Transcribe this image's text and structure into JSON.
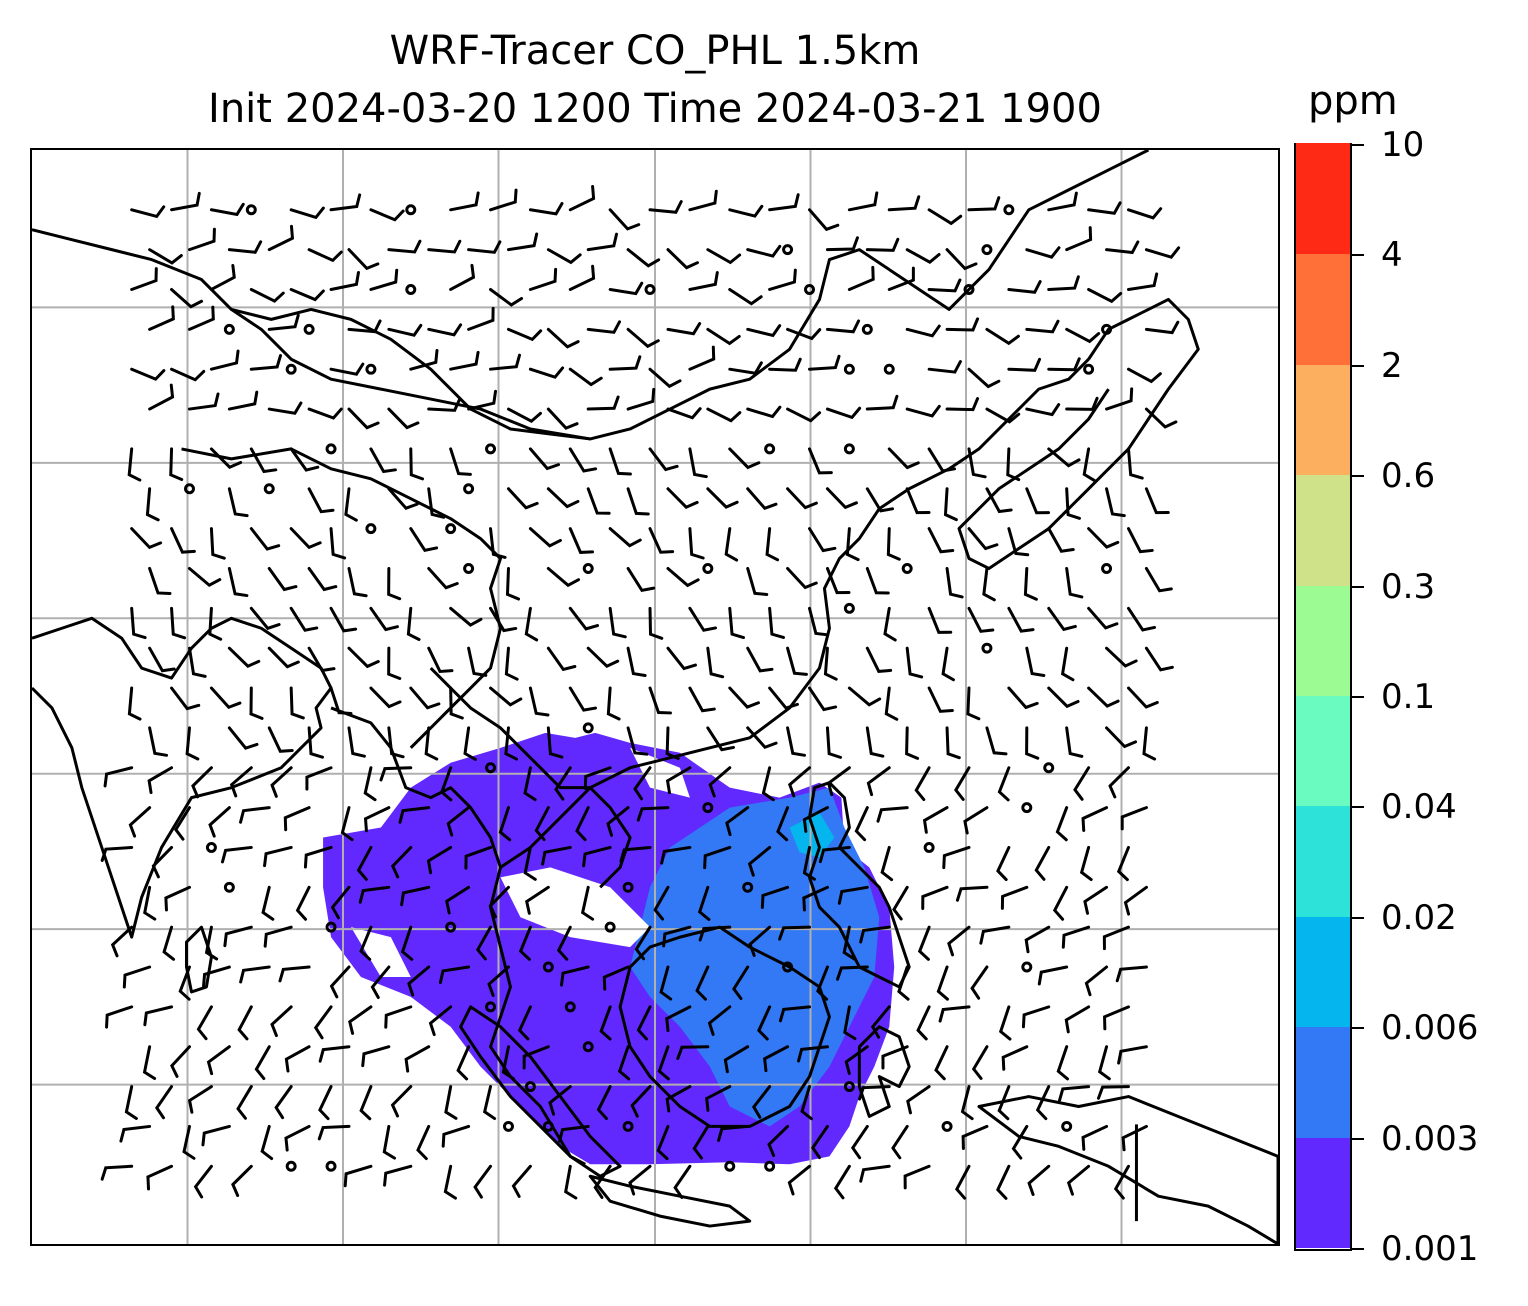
{
  "title": {
    "line1": "WRF-Tracer CO_PHL 1.5km",
    "line2": "Init 2024-03-20 1200 Time 2024-03-21 1900"
  },
  "colorbar": {
    "unit": "ppm",
    "levels": [
      "0.001",
      "0.003",
      "0.006",
      "0.02",
      "0.04",
      "0.1",
      "0.3",
      "0.6",
      "2",
      "4",
      "10"
    ],
    "colors": [
      "#6229ff",
      "#3378f4",
      "#04b5ee",
      "#2de2d8",
      "#6afbc0",
      "#9dfb93",
      "#cfe28a",
      "#fdaf60",
      "#ff7038",
      "#ff2a15"
    ]
  },
  "map": {
    "gridlines": true,
    "grid_color": "#b0b0b0",
    "features": [
      "coastlines",
      "country-borders",
      "wind-barbs",
      "co-tracer-plume"
    ],
    "plume_fill_color": "#6229ff",
    "plume_secondary_color": "#3378f4"
  }
}
